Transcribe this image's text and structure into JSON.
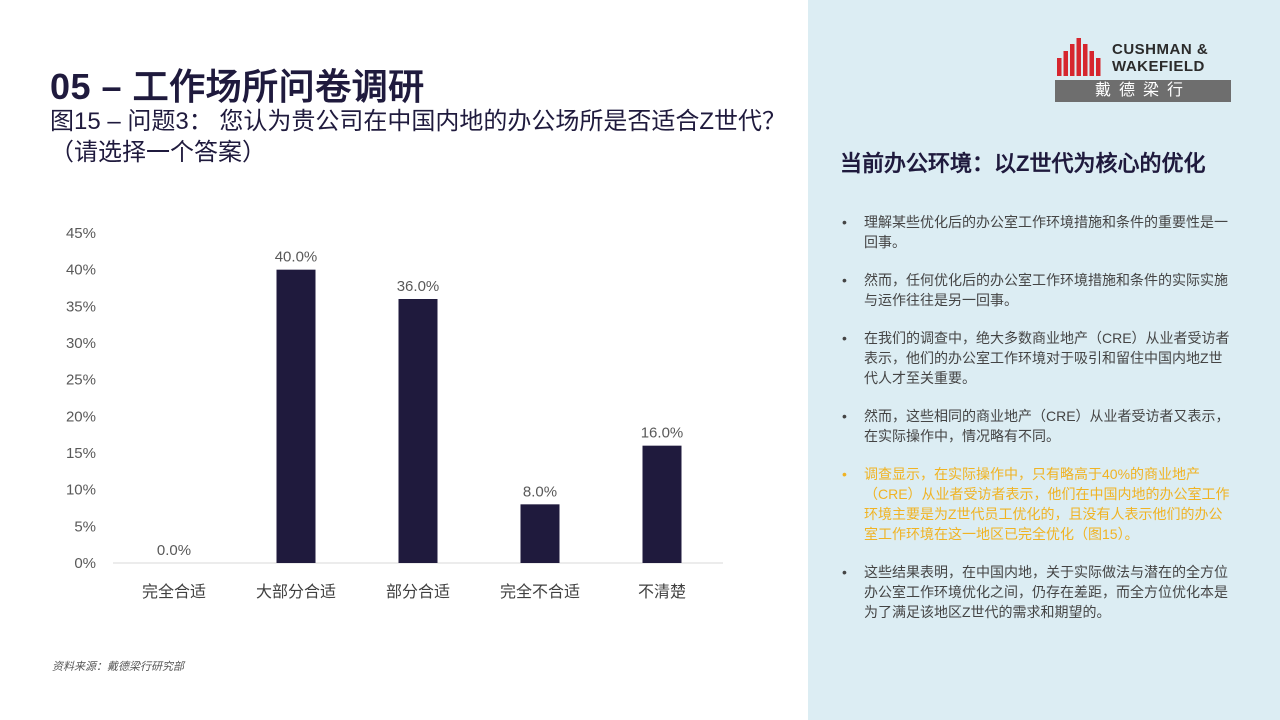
{
  "page": {
    "title": "05 – 工作场所问卷调研",
    "subtitle": "图15 – 问题3： 您认为贵公司在中国内地的办公场所是否适合Z世代？（请选择一个答案）",
    "source": "资料来源：戴德梁行研究部"
  },
  "logo": {
    "line1": "CUSHMAN &",
    "line2": "WAKEFIELD",
    "chinese": "戴德梁行",
    "color": "#d6262e"
  },
  "sidebar": {
    "heading": "当前办公环境：以Z世代为核心的优化",
    "bullets": [
      {
        "text": "理解某些优化后的办公室工作环境措施和条件的重要性是一回事。",
        "highlight": false
      },
      {
        "text": "然而，任何优化后的办公室工作环境措施和条件的实际实施与运作往往是另一回事。",
        "highlight": false
      },
      {
        "text": "在我们的调查中，绝大多数商业地产（CRE）从业者受访者表示，他们的办公室工作环境对于吸引和留住中国内地Z世代人才至关重要。",
        "highlight": false
      },
      {
        "text": "然而，这些相同的商业地产（CRE）从业者受访者又表示，在实际操作中，情况略有不同。",
        "highlight": false
      },
      {
        "text": "调查显示，在实际操作中，只有略高于40%的商业地产（CRE）从业者受访者表示，他们在中国内地的办公室工作环境主要是为Z世代员工优化的，且没有人表示他们的办公室工作环境在这一地区已完全优化（图15）。",
        "highlight": true
      },
      {
        "text": "这些结果表明，在中国内地，关于实际做法与潜在的全方位办公室工作环境优化之间，仍存在差距，而全方位优化本是为了满足该地区Z世代的需求和期望的。",
        "highlight": false
      }
    ],
    "bullet_symbol": "•"
  },
  "colors": {
    "bar": "#1f1a3d",
    "highlight": "#f0b323",
    "sidebar_bg": "#dcedf3"
  },
  "chart_data": {
    "type": "bar",
    "categories": [
      "完全合适",
      "大部分合适",
      "部分合适",
      "完全不合适",
      "不清楚"
    ],
    "values": [
      0,
      40,
      36,
      8,
      16
    ],
    "value_labels": [
      "0.0%",
      "40.0%",
      "36.0%",
      "8.0%",
      "16.0%"
    ],
    "ylim": [
      0,
      45
    ],
    "yticks": [
      0,
      5,
      10,
      15,
      20,
      25,
      30,
      35,
      40,
      45
    ],
    "ytick_labels": [
      "0%",
      "5%",
      "10%",
      "15%",
      "20%",
      "25%",
      "30%",
      "35%",
      "40%",
      "45%"
    ],
    "grid": false,
    "legend": "none"
  }
}
